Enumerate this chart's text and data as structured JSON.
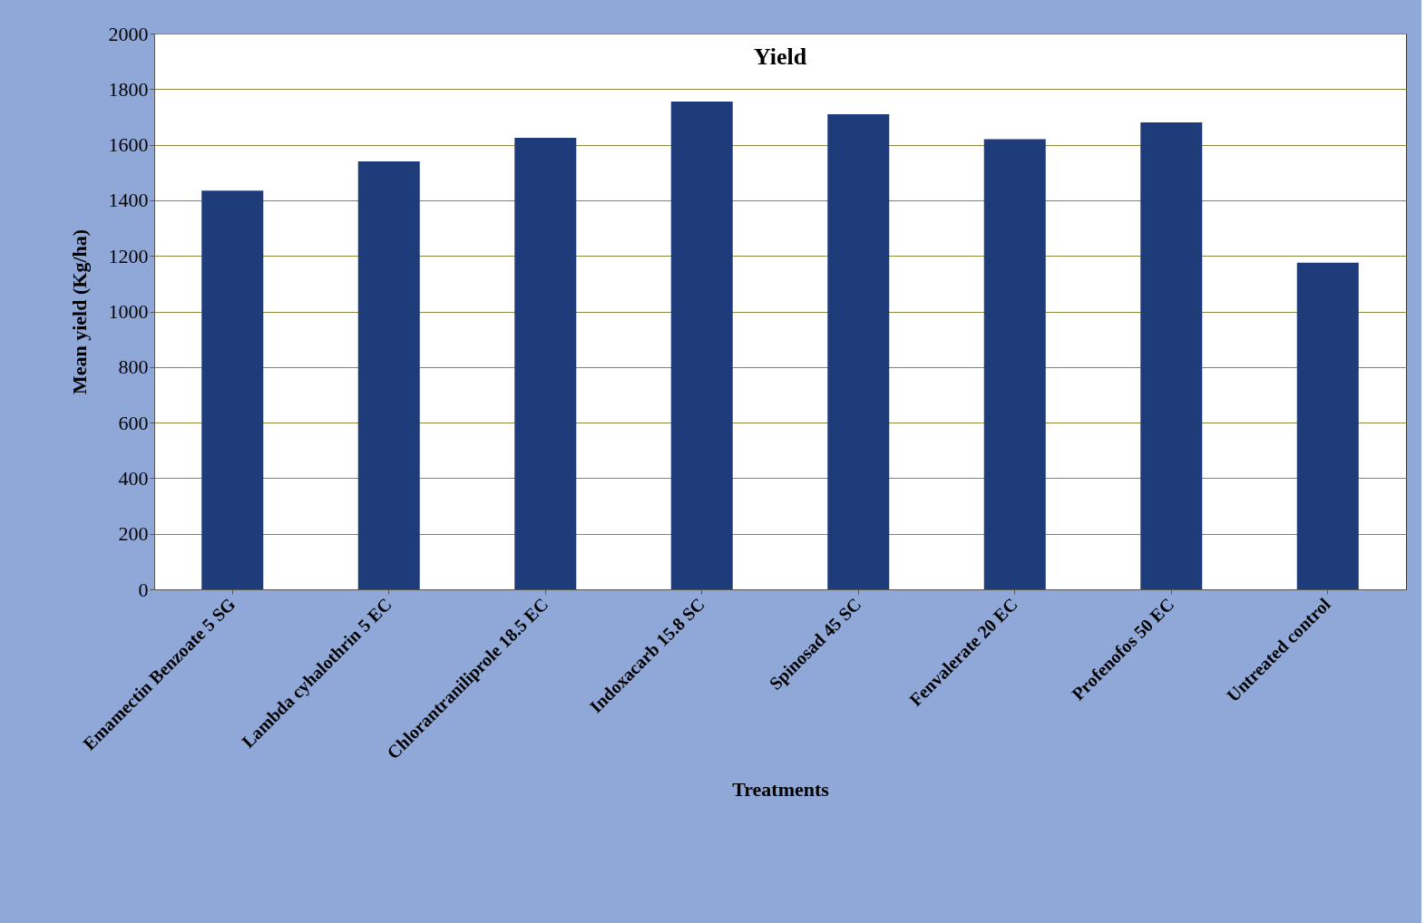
{
  "chart_data": {
    "type": "bar",
    "title": "Yield",
    "xlabel": "Treatments",
    "ylabel": "Mean yield (Kg/ha)",
    "categories": [
      "Emamectin Benzoate 5 SG",
      "Lambda cyhalothrin 5 EC",
      "Chlorantraniliprole 18.5 EC",
      "Indoxacarb 15.8 SC",
      "Spinosad 45 SC",
      "Fenvalerate 20 EC",
      "Profenofos 50 EC",
      "Untreated control"
    ],
    "values": [
      1435,
      1540,
      1625,
      1755,
      1710,
      1620,
      1680,
      1175
    ],
    "color": "#1f3c7a",
    "ylim": [
      0,
      2000
    ],
    "yticks": [
      0,
      200,
      400,
      600,
      800,
      1000,
      1200,
      1400,
      1600,
      1800,
      2000
    ],
    "grid": "y"
  }
}
